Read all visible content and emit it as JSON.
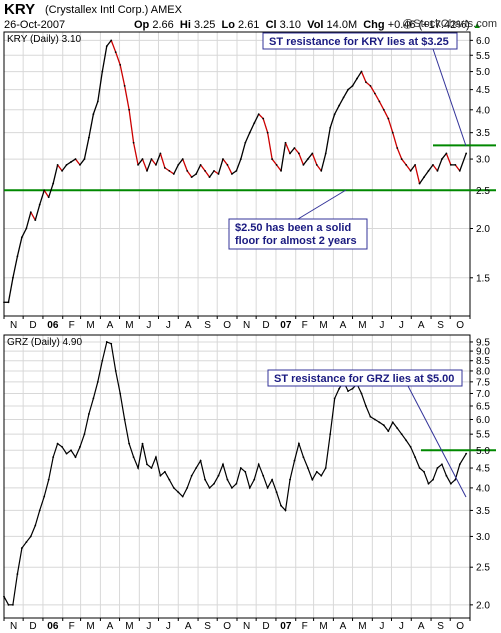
{
  "header": {
    "ticker": "KRY",
    "company": "(Crystallex Intl Corp.)",
    "exchange": "AMEX",
    "date": "26-Oct-2007",
    "quote": {
      "open_label": "Op",
      "open": "2.66",
      "high_label": "Hi",
      "high": "3.25",
      "low_label": "Lo",
      "low": "2.61",
      "close_label": "Cl",
      "close": "3.10",
      "volume_label": "Vol",
      "volume": "14.0M",
      "change_label": "Chg",
      "change": "+0.46 (+17.42%)",
      "arrow": "▲"
    },
    "brand": "@StockCharts.com"
  },
  "colors": {
    "grid": "#d8d8d8",
    "frame": "#000000",
    "kry_up": "#000000",
    "kry_down": "#cc0000",
    "grz_line": "#000000",
    "level": "#008800",
    "annotation": "#1a1a80",
    "annotation_border": "#333399"
  },
  "chart_data": [
    {
      "type": "line",
      "title": "KRY (Daily) 3.10",
      "scale": "log",
      "ylim": [
        1.2,
        6.3
      ],
      "yticks": [
        "1.5",
        "2.0",
        "2.5",
        "3.0",
        "3.5",
        "4.0",
        "4.5",
        "5.0",
        "5.5",
        "6.0"
      ],
      "xticks": [
        "N",
        "D",
        "06",
        "F",
        "M",
        "A",
        "M",
        "J",
        "J",
        "A",
        "S",
        "O",
        "N",
        "D",
        "07",
        "F",
        "M",
        "A",
        "M",
        "J",
        "J",
        "A",
        "S",
        "O"
      ],
      "x": [
        "2005-11-01",
        "2005-11-08",
        "2005-11-15",
        "2005-11-22",
        "2005-11-29",
        "2005-12-06",
        "2005-12-13",
        "2005-12-20",
        "2005-12-27",
        "2006-01-03",
        "2006-01-10",
        "2006-01-17",
        "2006-01-24",
        "2006-01-31",
        "2006-02-07",
        "2006-02-14",
        "2006-02-21",
        "2006-02-28",
        "2006-03-07",
        "2006-03-14",
        "2006-03-21",
        "2006-03-28",
        "2006-04-04",
        "2006-04-11",
        "2006-04-18",
        "2006-04-25",
        "2006-05-02",
        "2006-05-09",
        "2006-05-16",
        "2006-05-23",
        "2006-05-30",
        "2006-06-06",
        "2006-06-13",
        "2006-06-20",
        "2006-06-27",
        "2006-07-04",
        "2006-07-11",
        "2006-07-18",
        "2006-07-25",
        "2006-08-01",
        "2006-08-08",
        "2006-08-15",
        "2006-08-22",
        "2006-08-29",
        "2006-09-05",
        "2006-09-12",
        "2006-09-19",
        "2006-09-26",
        "2006-10-03",
        "2006-10-10",
        "2006-10-17",
        "2006-10-24",
        "2006-10-31",
        "2006-11-07",
        "2006-11-14",
        "2006-11-21",
        "2006-11-28",
        "2006-12-05",
        "2006-12-12",
        "2006-12-19",
        "2006-12-26",
        "2007-01-02",
        "2007-01-09",
        "2007-01-16",
        "2007-01-23",
        "2007-01-30",
        "2007-02-06",
        "2007-02-13",
        "2007-02-20",
        "2007-02-27",
        "2007-03-06",
        "2007-03-13",
        "2007-03-20",
        "2007-03-27",
        "2007-04-03",
        "2007-04-10",
        "2007-04-17",
        "2007-04-24",
        "2007-05-01",
        "2007-05-08",
        "2007-05-15",
        "2007-05-22",
        "2007-05-29",
        "2007-06-05",
        "2007-06-12",
        "2007-06-19",
        "2007-06-26",
        "2007-07-03",
        "2007-07-10",
        "2007-07-17",
        "2007-07-24",
        "2007-07-31",
        "2007-08-07",
        "2007-08-14",
        "2007-08-21",
        "2007-08-28",
        "2007-09-04",
        "2007-09-11",
        "2007-09-18",
        "2007-09-25",
        "2007-10-02",
        "2007-10-09",
        "2007-10-16",
        "2007-10-26"
      ],
      "series": [
        {
          "values": [
            1.3,
            1.3,
            1.5,
            1.7,
            1.9,
            2.0,
            2.2,
            2.1,
            2.3,
            2.5,
            2.4,
            2.6,
            2.9,
            2.8,
            2.9,
            2.95,
            3.0,
            2.9,
            3.0,
            3.4,
            3.9,
            4.2,
            5.0,
            5.8,
            6.0,
            5.6,
            5.2,
            4.6,
            4.0,
            3.3,
            2.9,
            3.0,
            2.8,
            3.0,
            2.9,
            3.1,
            2.85,
            2.8,
            2.75,
            2.9,
            3.0,
            2.8,
            2.7,
            2.75,
            2.9,
            2.8,
            2.7,
            2.8,
            2.75,
            3.0,
            2.9,
            2.75,
            2.8,
            3.0,
            3.3,
            3.5,
            3.7,
            3.9,
            3.8,
            3.5,
            3.0,
            2.9,
            2.8,
            3.3,
            3.1,
            3.2,
            3.1,
            2.9,
            3.0,
            3.1,
            2.9,
            2.8,
            3.1,
            3.6,
            3.9,
            4.1,
            4.3,
            4.5,
            4.6,
            4.8,
            5.0,
            4.7,
            4.6,
            4.4,
            4.2,
            4.0,
            3.8,
            3.5,
            3.2,
            3.0,
            2.9,
            2.8,
            2.9,
            2.6,
            2.7,
            2.8,
            2.9,
            2.8,
            3.0,
            3.1,
            2.9,
            2.9,
            2.8,
            3.1
          ]
        }
      ],
      "levels": [
        {
          "label": "$2.50 has been a solid floor for almost 2 years",
          "value": 2.5
        },
        {
          "label": "ST resistance for KRY lies at $3.25",
          "value": 3.25
        }
      ]
    },
    {
      "type": "line",
      "title": "GRZ (Daily) 4.90",
      "scale": "log",
      "ylim": [
        1.85,
        9.9
      ],
      "yticks": [
        "2.0",
        "2.5",
        "3.0",
        "3.5",
        "4.0",
        "4.5",
        "5.0",
        "5.5",
        "6.0",
        "6.5",
        "7.0",
        "7.5",
        "8.0",
        "8.5",
        "9.0",
        "9.5"
      ],
      "xticks": [
        "N",
        "D",
        "06",
        "F",
        "M",
        "A",
        "M",
        "J",
        "J",
        "A",
        "S",
        "O",
        "N",
        "D",
        "07",
        "F",
        "M",
        "A",
        "M",
        "J",
        "J",
        "A",
        "S",
        "O"
      ],
      "x": [
        "2005-11-01",
        "2005-11-08",
        "2005-11-15",
        "2005-11-22",
        "2005-11-29",
        "2005-12-06",
        "2005-12-13",
        "2005-12-20",
        "2005-12-27",
        "2006-01-03",
        "2006-01-10",
        "2006-01-17",
        "2006-01-24",
        "2006-01-31",
        "2006-02-07",
        "2006-02-14",
        "2006-02-21",
        "2006-02-28",
        "2006-03-07",
        "2006-03-14",
        "2006-03-21",
        "2006-03-28",
        "2006-04-04",
        "2006-04-11",
        "2006-04-18",
        "2006-04-25",
        "2006-05-02",
        "2006-05-09",
        "2006-05-16",
        "2006-05-23",
        "2006-05-30",
        "2006-06-06",
        "2006-06-13",
        "2006-06-20",
        "2006-06-27",
        "2006-07-04",
        "2006-07-11",
        "2006-07-18",
        "2006-07-25",
        "2006-08-01",
        "2006-08-08",
        "2006-08-15",
        "2006-08-22",
        "2006-08-29",
        "2006-09-05",
        "2006-09-12",
        "2006-09-19",
        "2006-09-26",
        "2006-10-03",
        "2006-10-10",
        "2006-10-17",
        "2006-10-24",
        "2006-10-31",
        "2006-11-07",
        "2006-11-14",
        "2006-11-21",
        "2006-11-28",
        "2006-12-05",
        "2006-12-12",
        "2006-12-19",
        "2006-12-26",
        "2007-01-02",
        "2007-01-09",
        "2007-01-16",
        "2007-01-23",
        "2007-01-30",
        "2007-02-06",
        "2007-02-13",
        "2007-02-20",
        "2007-02-27",
        "2007-03-06",
        "2007-03-13",
        "2007-03-20",
        "2007-03-27",
        "2007-04-03",
        "2007-04-10",
        "2007-04-17",
        "2007-04-24",
        "2007-05-01",
        "2007-05-08",
        "2007-05-15",
        "2007-05-22",
        "2007-05-29",
        "2007-06-05",
        "2007-06-12",
        "2007-06-19",
        "2007-06-26",
        "2007-07-03",
        "2007-07-10",
        "2007-07-17",
        "2007-07-24",
        "2007-07-31",
        "2007-08-07",
        "2007-08-14",
        "2007-08-21",
        "2007-08-28",
        "2007-09-04",
        "2007-09-11",
        "2007-09-18",
        "2007-09-25",
        "2007-10-02",
        "2007-10-09",
        "2007-10-16",
        "2007-10-26"
      ],
      "series": [
        {
          "values": [
            2.1,
            2.0,
            2.0,
            2.4,
            2.8,
            2.9,
            3.0,
            3.2,
            3.5,
            3.8,
            4.2,
            4.8,
            5.2,
            5.1,
            4.9,
            5.0,
            4.8,
            5.1,
            5.5,
            6.2,
            6.8,
            7.5,
            8.5,
            9.5,
            9.4,
            8.0,
            7.0,
            6.0,
            5.2,
            4.8,
            4.5,
            5.2,
            4.6,
            4.5,
            4.8,
            4.3,
            4.4,
            4.2,
            4.0,
            3.9,
            3.8,
            4.0,
            4.3,
            4.5,
            4.7,
            4.2,
            4.0,
            4.1,
            4.3,
            4.6,
            4.2,
            4.0,
            4.1,
            4.5,
            4.4,
            4.0,
            4.2,
            4.6,
            4.3,
            4.0,
            4.2,
            3.9,
            3.6,
            3.5,
            4.2,
            4.7,
            5.2,
            4.8,
            4.5,
            4.2,
            4.4,
            4.3,
            4.5,
            5.5,
            6.8,
            7.2,
            7.5,
            7.1,
            7.2,
            7.4,
            7.0,
            6.5,
            6.1,
            6.0,
            5.9,
            5.8,
            5.6,
            5.9,
            5.7,
            5.5,
            5.3,
            5.1,
            4.8,
            4.5,
            4.4,
            4.1,
            4.2,
            4.5,
            4.6,
            4.3,
            4.1,
            4.2,
            4.6,
            4.9
          ]
        }
      ],
      "levels": [
        {
          "label": "ST resistance for GRZ lies at $5.00",
          "value": 5.0
        }
      ]
    }
  ]
}
